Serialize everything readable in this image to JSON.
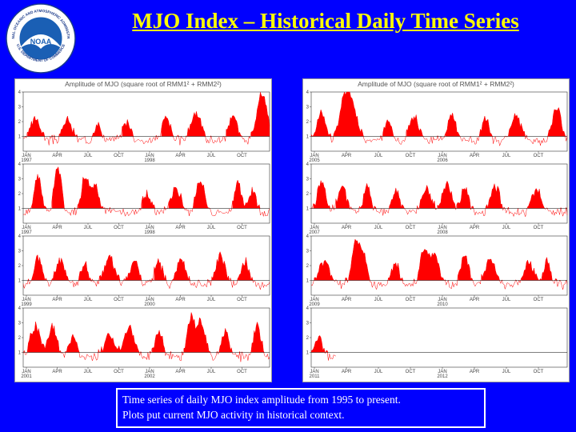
{
  "slide": {
    "title": "MJO Index – Historical Daily Time Series",
    "caption_lines": [
      "Time series of daily MJO index amplitude from 1995 to present.",
      "Plots put current MJO activity in historical context."
    ]
  },
  "logo": {
    "center_text": "NOAA",
    "ring_top": "NATIONAL OCEANIC AND ATMOSPHERIC ADMINISTRATION",
    "ring_bottom": "U.S. DEPARTMENT OF COMMERCE"
  },
  "colors": {
    "background": "#0000ff",
    "title": "#ffff00",
    "fill": "#ff0000",
    "line": "#ff0000",
    "baseline": "#000000"
  },
  "chart_data": [
    {
      "type": "area",
      "title": "Amplitude of MJO (square root of RMM1² + RMM2²)",
      "ylim": [
        0,
        4
      ],
      "yticks": [
        1,
        2,
        3,
        4
      ],
      "threshold": 1,
      "fill_above_threshold": true,
      "grid": false,
      "panels": [
        {
          "tick_labels": [
            "JAN",
            "APR",
            "JUL",
            "OCT",
            "JAN",
            "APR",
            "JUL",
            "OCT"
          ],
          "year_labels": [
            "1997",
            "1998"
          ],
          "seed": 3,
          "peaks": [
            [
              0.05,
              2.2
            ],
            [
              0.18,
              2.1
            ],
            [
              0.3,
              1.9
            ],
            [
              0.42,
              2.0
            ],
            [
              0.58,
              2.3
            ],
            [
              0.7,
              2.6
            ],
            [
              0.85,
              2.4
            ],
            [
              0.97,
              3.8
            ]
          ]
        },
        {
          "tick_labels": [
            "JAN",
            "APR",
            "JUL",
            "OCT",
            "JAN",
            "APR",
            "JUL",
            "OCT"
          ],
          "year_labels": [
            "1997",
            "1998"
          ],
          "seed": 7,
          "peaks": [
            [
              0.06,
              3.2
            ],
            [
              0.14,
              3.8
            ],
            [
              0.25,
              3.0
            ],
            [
              0.29,
              2.5
            ],
            [
              0.5,
              2.0
            ],
            [
              0.62,
              2.3
            ],
            [
              0.72,
              2.8
            ],
            [
              0.87,
              2.7
            ],
            [
              0.93,
              2.2
            ]
          ]
        },
        {
          "tick_labels": [
            "JAN",
            "APR",
            "JUL",
            "OCT",
            "JAN",
            "APR",
            "JUL",
            "OCT"
          ],
          "year_labels": [
            "1999",
            "2000"
          ],
          "seed": 11,
          "peaks": [
            [
              0.06,
              2.6
            ],
            [
              0.15,
              2.4
            ],
            [
              0.25,
              2.1
            ],
            [
              0.35,
              2.6
            ],
            [
              0.45,
              2.3
            ],
            [
              0.55,
              2.3
            ],
            [
              0.64,
              2.4
            ],
            [
              0.8,
              2.6
            ],
            [
              0.9,
              2.3
            ]
          ]
        },
        {
          "tick_labels": [
            "JAN",
            "APR",
            "JUL",
            "OCT",
            "JAN",
            "APR",
            "JUL",
            "OCT"
          ],
          "year_labels": [
            "2001",
            "2002"
          ],
          "seed": 19,
          "peaks": [
            [
              0.05,
              2.8
            ],
            [
              0.12,
              2.7
            ],
            [
              0.2,
              2.0
            ],
            [
              0.35,
              2.2
            ],
            [
              0.43,
              2.6
            ],
            [
              0.55,
              2.3
            ],
            [
              0.68,
              3.2
            ],
            [
              0.72,
              3.0
            ],
            [
              0.82,
              2.4
            ],
            [
              0.95,
              2.8
            ]
          ]
        }
      ]
    },
    {
      "type": "area",
      "title": "Amplitude of MJO (square root of RMM1² + RMM2²)",
      "ylim": [
        0,
        4
      ],
      "yticks": [
        1,
        2,
        3,
        4
      ],
      "threshold": 1,
      "fill_above_threshold": true,
      "grid": false,
      "panels": [
        {
          "tick_labels": [
            "JAN",
            "APR",
            "JUL",
            "OCT",
            "JAN",
            "APR",
            "JUL",
            "OCT"
          ],
          "year_labels": [
            "2005",
            "2006"
          ],
          "seed": 23,
          "peaks": [
            [
              0.04,
              2.5
            ],
            [
              0.13,
              3.2
            ],
            [
              0.16,
              2.8
            ],
            [
              0.3,
              2.1
            ],
            [
              0.4,
              2.3
            ],
            [
              0.55,
              2.4
            ],
            [
              0.68,
              2.2
            ],
            [
              0.8,
              2.5
            ],
            [
              0.96,
              3.0
            ]
          ]
        },
        {
          "tick_labels": [
            "JAN",
            "APR",
            "JUL",
            "OCT",
            "JAN",
            "APR",
            "JUL",
            "OCT"
          ],
          "year_labels": [
            "2007",
            "2008"
          ],
          "seed": 29,
          "peaks": [
            [
              0.04,
              2.8
            ],
            [
              0.12,
              2.5
            ],
            [
              0.22,
              2.4
            ],
            [
              0.33,
              2.2
            ],
            [
              0.45,
              2.4
            ],
            [
              0.53,
              2.6
            ],
            [
              0.6,
              2.4
            ],
            [
              0.72,
              2.4
            ],
            [
              0.88,
              2.2
            ]
          ]
        },
        {
          "tick_labels": [
            "JAN",
            "APR",
            "JUL",
            "OCT",
            "JAN",
            "APR",
            "JUL",
            "OCT"
          ],
          "year_labels": [
            "2009",
            "2010"
          ],
          "seed": 31,
          "peaks": [
            [
              0.05,
              2.3
            ],
            [
              0.17,
              3.0
            ],
            [
              0.2,
              2.8
            ],
            [
              0.33,
              2.1
            ],
            [
              0.44,
              3.0
            ],
            [
              0.48,
              2.6
            ],
            [
              0.6,
              2.8
            ],
            [
              0.7,
              2.3
            ],
            [
              0.85,
              2.3
            ],
            [
              0.92,
              2.2
            ]
          ]
        },
        {
          "tick_labels": [
            "JAN",
            "APR",
            "JUL",
            "OCT",
            "JAN",
            "APR",
            "JUL",
            "OCT"
          ],
          "year_labels": [
            "2011",
            "2012"
          ],
          "seed": 37,
          "peaks": [
            [
              0.03,
              1.9
            ]
          ],
          "end_fraction": 0.1
        }
      ]
    }
  ]
}
